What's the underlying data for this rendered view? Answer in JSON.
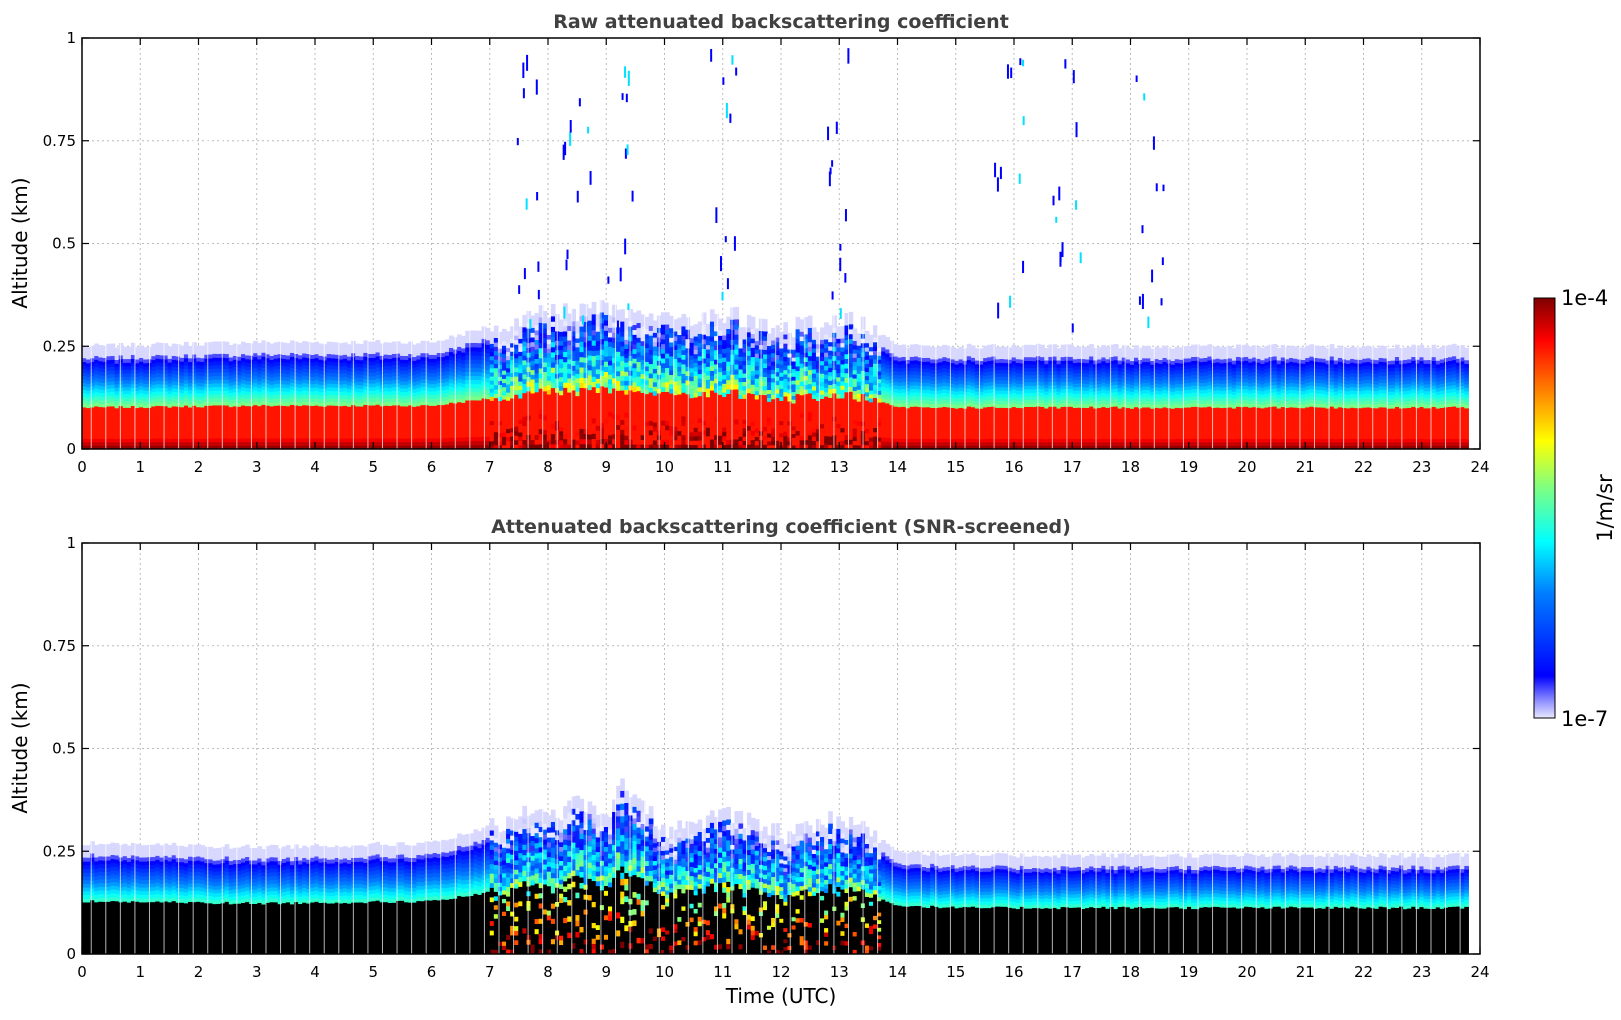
{
  "chart_data": [
    {
      "type": "heatmap",
      "title": "Raw attenuated backscattering coefficient",
      "xlabel": "",
      "ylabel": "Altitude (km)",
      "xlim": [
        0,
        24
      ],
      "ylim": [
        0,
        1
      ],
      "xticks": [
        "0",
        "1",
        "2",
        "3",
        "4",
        "5",
        "6",
        "7",
        "8",
        "9",
        "10",
        "11",
        "12",
        "13",
        "14",
        "15",
        "16",
        "17",
        "18",
        "19",
        "20",
        "21",
        "22",
        "23",
        "24"
      ],
      "yticks": [
        "0",
        "0.25",
        "0.5",
        "0.75",
        "1"
      ],
      "grid": true,
      "data_extent_hours": [
        0,
        23.8
      ],
      "profile": {
        "near_surface_max_km": 0.1,
        "layer_top_km": {
          "time": [
            0,
            3,
            6,
            7,
            8,
            9,
            10,
            11,
            12,
            13,
            13.5,
            14,
            15,
            24
          ],
          "value": [
            0.22,
            0.23,
            0.23,
            0.27,
            0.3,
            0.31,
            0.28,
            0.3,
            0.26,
            0.29,
            0.26,
            0.22,
            0.22,
            0.22
          ]
        },
        "noise_spikes": [
          7.7,
          8.5,
          9.2,
          11.0,
          13.0,
          15.9,
          16.9,
          18.3
        ]
      }
    },
    {
      "type": "heatmap",
      "title": "Attenuated backscattering coefficient (SNR-screened)",
      "xlabel": "Time (UTC)",
      "ylabel": "Altitude (km)",
      "xlim": [
        0,
        24
      ],
      "ylim": [
        0,
        1
      ],
      "xticks": [
        "0",
        "1",
        "2",
        "3",
        "4",
        "5",
        "6",
        "7",
        "8",
        "9",
        "10",
        "11",
        "12",
        "13",
        "14",
        "15",
        "16",
        "17",
        "18",
        "19",
        "20",
        "21",
        "22",
        "23",
        "24"
      ],
      "yticks": [
        "0",
        "0.25",
        "0.5",
        "0.75",
        "1"
      ],
      "grid": true,
      "data_extent_hours": [
        0,
        23.8
      ],
      "profile": {
        "screened_color": "#000000",
        "layer_top_km": {
          "time": [
            0,
            3,
            6,
            7,
            7.6,
            8,
            8.5,
            9,
            9.2,
            10,
            11,
            12,
            13,
            13.5,
            14,
            15,
            24
          ],
          "value": [
            0.24,
            0.23,
            0.24,
            0.28,
            0.32,
            0.3,
            0.35,
            0.3,
            0.4,
            0.27,
            0.31,
            0.26,
            0.3,
            0.27,
            0.22,
            0.21,
            0.21
          ]
        }
      }
    }
  ],
  "colorbar": {
    "label": "1/m/sr",
    "max_label": "1e-4",
    "min_label": "1e-7",
    "scale": "log",
    "colormap": "jet",
    "range": [
      1e-07,
      0.0001
    ]
  },
  "colors": {
    "grid": "#bbbbbb",
    "axis": "#000000",
    "title": "#404040",
    "jet": [
      "#7f0000",
      "#ff0000",
      "#ff8000",
      "#ffff00",
      "#80ff80",
      "#00ffff",
      "#0080ff",
      "#0000ff",
      "#00008f"
    ]
  }
}
